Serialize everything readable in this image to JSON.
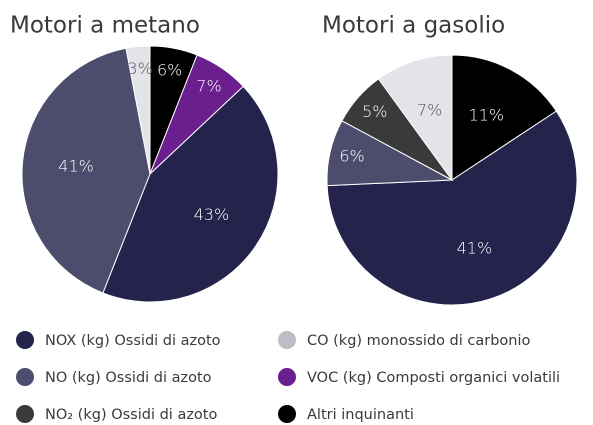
{
  "chart_data": [
    {
      "type": "pie",
      "title": "Motori a metano",
      "values": [
        6,
        7,
        43,
        41,
        3
      ],
      "value_labels": [
        "6%",
        "7%",
        "43%",
        "41%",
        "3%"
      ],
      "colors": [
        "#000000",
        "#6b1f8e",
        "#23234b",
        "#4c4c6c",
        "#e3e3ea"
      ]
    },
    {
      "type": "pie",
      "title": "Motori a gasolio",
      "values": [
        11,
        41,
        6,
        5,
        7
      ],
      "value_labels": [
        "11%",
        "41%",
        "6%",
        "5%",
        "7%"
      ],
      "colors": [
        "#000000",
        "#23234b",
        "#4c4c6c",
        "#3a3a3a",
        "#e3e3ea"
      ]
    }
  ],
  "legend": {
    "names": [
      "NOX (kg) Ossidi di azoto",
      "NO (kg) Ossidi di azoto",
      "NO₂ (kg) Ossidi di azoto",
      "CO (kg) monossido di carbonio",
      "VOC (kg) Composti organici volatili",
      "Altri inquinanti"
    ],
    "colors": [
      "#23234b",
      "#4c4c6c",
      "#3a3a3a",
      "#bdbdc6",
      "#6b1f8e",
      "#000000"
    ]
  }
}
